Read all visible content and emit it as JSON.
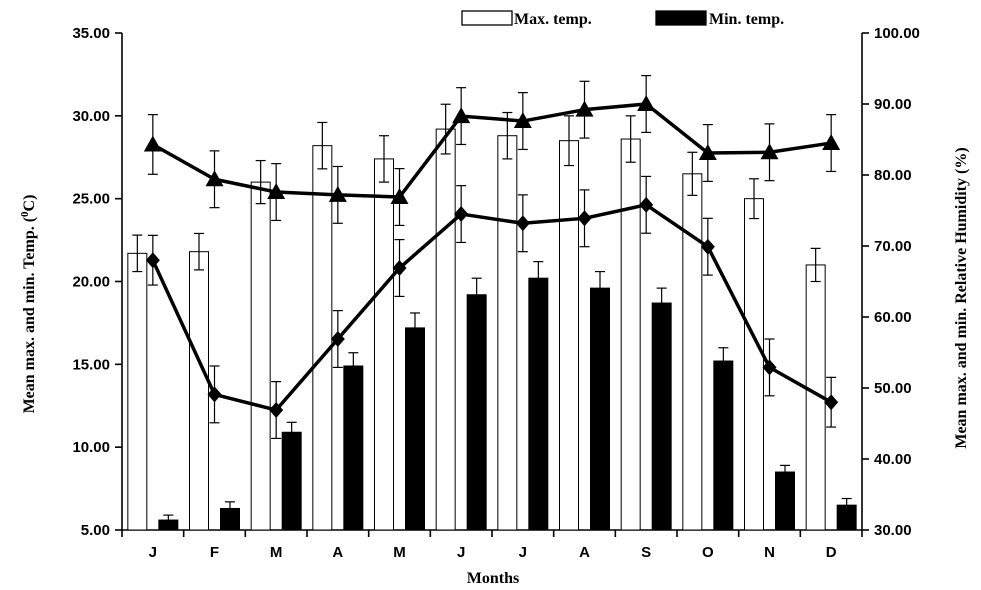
{
  "chart_data": {
    "type": "bar",
    "categories": [
      "J",
      "F",
      "M",
      "A",
      "M",
      "J",
      "J",
      "A",
      "S",
      "O",
      "N",
      "D"
    ],
    "xlabel": "Months",
    "ylabel_left": "Mean max. and min. Temp. (",
    "ylabel_left_sup": "0",
    "ylabel_left_end": "C)",
    "ylabel_right": "Mean max. and min. Relative Humidity (%)",
    "ylim_left": [
      5,
      35
    ],
    "yticks_left": [
      "5.00",
      "10.00",
      "15.00",
      "20.00",
      "25.00",
      "30.00",
      "35.00"
    ],
    "ylim_right": [
      30,
      100
    ],
    "yticks_right": [
      "30.00",
      "40.00",
      "50.00",
      "60.00",
      "70.00",
      "80.00",
      "90.00",
      "100.00"
    ],
    "legend": [
      "Max. temp.",
      "Min. temp."
    ],
    "legend_position": "top",
    "bar_series": [
      {
        "name": "Max. temp.",
        "fill": "#ffffff",
        "values": [
          21.7,
          21.8,
          26.0,
          28.2,
          27.4,
          29.2,
          28.8,
          28.5,
          28.6,
          26.5,
          25.0,
          21.0
        ],
        "err": [
          1.1,
          1.1,
          1.3,
          1.4,
          1.4,
          1.5,
          1.4,
          1.5,
          1.4,
          1.3,
          1.2,
          1.0
        ]
      },
      {
        "name": "Min. temp.",
        "fill": "#000000",
        "values": [
          5.6,
          6.3,
          10.9,
          14.9,
          17.2,
          19.2,
          20.2,
          19.6,
          18.7,
          15.2,
          8.5,
          6.5
        ],
        "err": [
          0.3,
          0.4,
          0.6,
          0.8,
          0.9,
          1.0,
          1.0,
          1.0,
          0.9,
          0.8,
          0.4,
          0.4
        ]
      }
    ],
    "line_series": [
      {
        "marker": "triangle",
        "values": [
          84.3,
          79.4,
          77.6,
          77.2,
          76.9,
          88.3,
          87.6,
          89.2,
          90.0,
          83.1,
          83.2,
          84.5
        ],
        "err": [
          4.2,
          4.0,
          4.0,
          4.0,
          4.0,
          4.0,
          4.0,
          4.0,
          4.0,
          4.0,
          4.0,
          4.0
        ]
      },
      {
        "marker": "diamond",
        "values": [
          68.0,
          49.1,
          46.9,
          56.9,
          66.9,
          74.5,
          73.2,
          73.9,
          75.8,
          69.9,
          52.9,
          48.0
        ],
        "err": [
          3.5,
          4.0,
          4.0,
          4.0,
          4.0,
          4.0,
          4.0,
          4.0,
          4.0,
          4.0,
          4.0,
          3.5
        ]
      }
    ]
  }
}
